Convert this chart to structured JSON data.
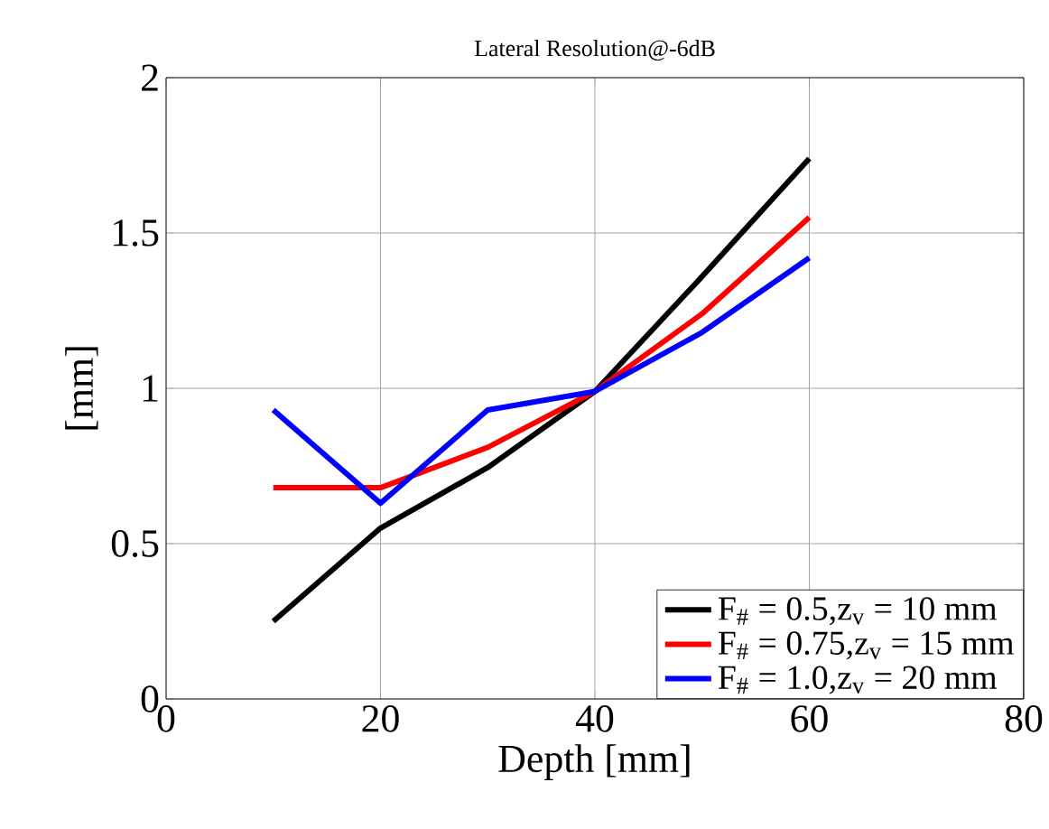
{
  "chart_data": {
    "type": "line",
    "title": "Lateral Resolution@-6dB",
    "xlabel": "Depth [mm]",
    "ylabel": "[mm]",
    "x": [
      10,
      20,
      30,
      40,
      50,
      60
    ],
    "series": [
      {
        "name": "F$_{#}$ = 0.5,z$_{v}$ = 10 mm",
        "color": "#000000",
        "values": [
          0.25,
          0.55,
          0.745,
          0.99,
          1.36,
          1.74
        ]
      },
      {
        "name": "F$_{#}$ = 0.75,z$_{v}$ = 15 mm",
        "color": "#ff0000",
        "values": [
          0.68,
          0.68,
          0.81,
          0.99,
          1.24,
          1.55
        ]
      },
      {
        "name": "F$_{#}$ = 1.0,z$_{v}$ = 20 mm",
        "color": "#0000ff",
        "values": [
          0.93,
          0.63,
          0.93,
          0.99,
          1.18,
          1.42
        ]
      }
    ],
    "xlim": [
      0,
      80
    ],
    "ylim": [
      0,
      2
    ],
    "xticks": [
      0,
      20,
      40,
      60,
      80
    ],
    "yticks": [
      0,
      0.5,
      1,
      1.5,
      2
    ],
    "grid": true,
    "legend": "bottom right",
    "marker": "none",
    "line_style": "solid"
  }
}
